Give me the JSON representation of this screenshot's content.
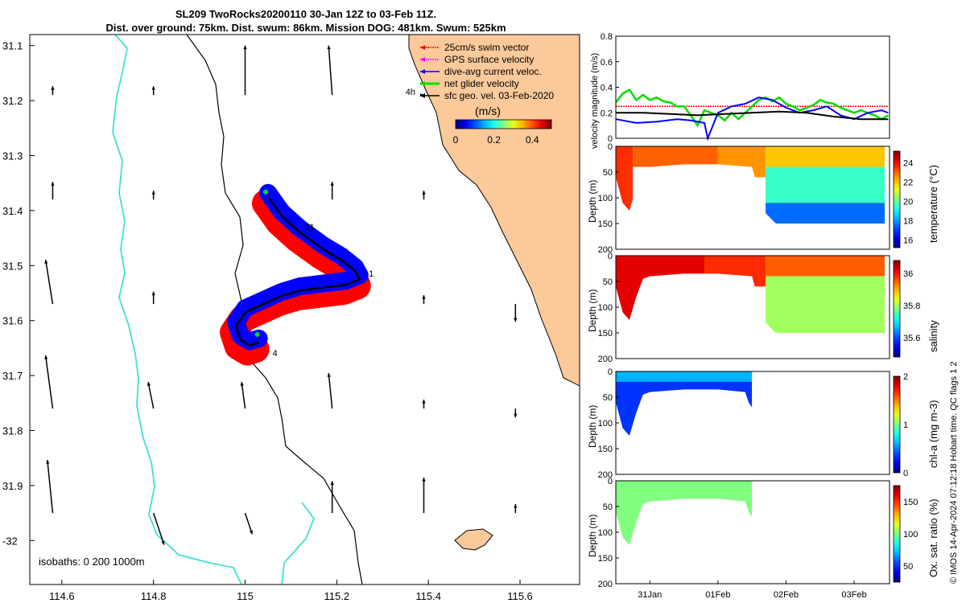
{
  "title_line1": "SL209 TwoRocks20200110 30-Jan 12Z to 03-Feb 11Z.",
  "title_line2": "Dist. over ground: 75km. Dist. swum: 86km. Mission DOG: 481km. Swum: 525km",
  "footer": "© IMOS 14-Apr-2024 07:12:18 Hobart time. QC flags 1  2",
  "colors": {
    "land": "#fbc99a",
    "coast": "#000000",
    "isobath": "#40e0d0",
    "swim": "#ff0000",
    "gps": "#ff00ff",
    "dac": "#0000ff",
    "net": "#00dd00",
    "sfc": "#000000"
  },
  "chart_data": [
    {
      "type": "map",
      "xlim": [
        114.53,
        115.73
      ],
      "ylim": [
        -32.08,
        -31.08
      ],
      "x_ticks": [
        "114.6",
        "114.8",
        "115",
        "115.2",
        "115.4",
        "115.6"
      ],
      "y_ticks": [
        "31.1",
        "31.2",
        "31.3",
        "31.4",
        "31.5",
        "31.6",
        "31.7",
        "31.8",
        "31.9",
        "-32"
      ],
      "isobath_label": "isobaths: 0   200  1000m",
      "legend": [
        "25cm/s swim vector",
        "GPS surface velocity",
        "dive-avg current veloc.",
        "net glider velocity",
        "sfc geo. vel. 03-Feb-2020"
      ],
      "colorbar_label": "(m/s)",
      "colorbar_ticks": [
        "0",
        "0.2",
        "0.4"
      ],
      "colorbar_range": [
        0,
        0.5
      ],
      "annotations": [
        {
          "text": "4h",
          "lon": 115.35,
          "lat": -31.19
        },
        {
          "text": "31",
          "lon": 115.13,
          "lat": -31.435
        },
        {
          "text": "1",
          "lon": 115.27,
          "lat": -31.52
        },
        {
          "text": "4",
          "lon": 115.06,
          "lat": -31.665
        }
      ],
      "track": [
        [
          115.05,
          -31.375
        ],
        [
          115.08,
          -31.41
        ],
        [
          115.12,
          -31.44
        ],
        [
          115.17,
          -31.47
        ],
        [
          115.21,
          -31.49
        ],
        [
          115.24,
          -31.51
        ],
        [
          115.25,
          -31.525
        ],
        [
          115.22,
          -31.535
        ],
        [
          115.17,
          -31.54
        ],
        [
          115.12,
          -31.545
        ],
        [
          115.08,
          -31.555
        ],
        [
          115.04,
          -31.57
        ],
        [
          115.0,
          -31.585
        ],
        [
          114.98,
          -31.61
        ],
        [
          114.99,
          -31.635
        ],
        [
          115.01,
          -31.645
        ],
        [
          115.03,
          -31.64
        ]
      ],
      "surface_vectors": [
        {
          "lon": 114.58,
          "lat": -31.19,
          "u": 0.0,
          "v": 0.05
        },
        {
          "lon": 114.8,
          "lat": -31.19,
          "u": 0.0,
          "v": 0.05
        },
        {
          "lon": 115.0,
          "lat": -31.19,
          "u": 0.0,
          "v": 0.28
        },
        {
          "lon": 115.19,
          "lat": -31.19,
          "u": -0.02,
          "v": 0.28
        },
        {
          "lon": 115.39,
          "lat": -31.19,
          "u": 0.0,
          "v": 0.0
        },
        {
          "lon": 114.58,
          "lat": -31.38,
          "u": 0.0,
          "v": 0.1
        },
        {
          "lon": 114.8,
          "lat": -31.38,
          "u": 0.0,
          "v": 0.05
        },
        {
          "lon": 115.19,
          "lat": -31.38,
          "u": 0.0,
          "v": 0.1
        },
        {
          "lon": 115.39,
          "lat": -31.38,
          "u": 0.0,
          "v": 0.05
        },
        {
          "lon": 114.58,
          "lat": -31.57,
          "u": -0.04,
          "v": 0.25
        },
        {
          "lon": 114.8,
          "lat": -31.57,
          "u": 0.0,
          "v": 0.07
        },
        {
          "lon": 115.19,
          "lat": -31.57,
          "u": 0.0,
          "v": 0.15
        },
        {
          "lon": 115.39,
          "lat": -31.57,
          "u": 0.0,
          "v": 0.05
        },
        {
          "lon": 115.59,
          "lat": -31.57,
          "u": 0.0,
          "v": -0.1
        },
        {
          "lon": 114.58,
          "lat": -31.76,
          "u": -0.04,
          "v": 0.3
        },
        {
          "lon": 114.8,
          "lat": -31.76,
          "u": -0.03,
          "v": 0.15
        },
        {
          "lon": 115.0,
          "lat": -31.76,
          "u": -0.02,
          "v": 0.15
        },
        {
          "lon": 115.19,
          "lat": -31.76,
          "u": -0.02,
          "v": 0.2
        },
        {
          "lon": 115.39,
          "lat": -31.76,
          "u": 0.0,
          "v": 0.05
        },
        {
          "lon": 115.59,
          "lat": -31.76,
          "u": 0.0,
          "v": -0.05
        },
        {
          "lon": 114.58,
          "lat": -31.95,
          "u": -0.03,
          "v": 0.3
        },
        {
          "lon": 114.8,
          "lat": -31.95,
          "u": 0.06,
          "v": -0.18
        },
        {
          "lon": 115.0,
          "lat": -31.95,
          "u": 0.04,
          "v": -0.12
        },
        {
          "lon": 115.19,
          "lat": -31.95,
          "u": 0.0,
          "v": 0.18
        },
        {
          "lon": 115.39,
          "lat": -31.95,
          "u": 0.0,
          "v": 0.2
        },
        {
          "lon": 115.59,
          "lat": -31.95,
          "u": 0.0,
          "v": 0.05
        }
      ]
    },
    {
      "type": "line",
      "ylabel": "velocity magnitude (m/s)",
      "xlim": [
        0,
        4.02
      ],
      "ylim": [
        0,
        0.8
      ],
      "y_ticks": [
        "0",
        "0.2",
        "0.4",
        "0.6",
        "0.8"
      ],
      "series": [
        {
          "color": "#ff0000",
          "x": [
            0.0,
            4.0
          ],
          "y": [
            0.25,
            0.25
          ]
        },
        {
          "color": "#00dd00",
          "x": [
            0.0,
            0.1,
            0.2,
            0.3,
            0.4,
            0.5,
            0.6,
            0.7,
            0.8,
            0.9,
            1.0,
            1.1,
            1.2,
            1.3,
            1.4,
            1.5,
            1.6,
            1.7,
            1.8,
            1.9,
            2.0,
            2.1,
            2.2,
            2.3,
            2.4,
            2.5,
            2.6,
            2.7,
            2.8,
            2.9,
            3.0,
            3.1,
            3.2,
            3.3,
            3.4,
            3.5,
            3.6,
            3.7,
            3.8,
            3.9,
            4.0
          ],
          "y": [
            0.28,
            0.35,
            0.38,
            0.3,
            0.34,
            0.3,
            0.32,
            0.29,
            0.28,
            0.25,
            0.25,
            0.18,
            0.1,
            0.22,
            0.2,
            0.18,
            0.14,
            0.2,
            0.15,
            0.2,
            0.25,
            0.3,
            0.32,
            0.29,
            0.32,
            0.27,
            0.25,
            0.22,
            0.24,
            0.26,
            0.3,
            0.28,
            0.27,
            0.24,
            0.22,
            0.2,
            0.22,
            0.2,
            0.18,
            0.15,
            0.18
          ]
        },
        {
          "color": "#0000ff",
          "x": [
            0.0,
            0.3,
            0.6,
            0.9,
            1.1,
            1.3,
            1.35,
            1.5,
            1.7,
            1.9,
            2.1,
            2.3,
            2.5,
            2.7,
            2.9,
            3.1,
            3.3,
            3.5,
            3.7,
            3.9,
            4.0
          ],
          "y": [
            0.15,
            0.12,
            0.13,
            0.15,
            0.14,
            0.12,
            0.0,
            0.2,
            0.25,
            0.27,
            0.32,
            0.3,
            0.24,
            0.2,
            0.22,
            0.25,
            0.18,
            0.15,
            0.2,
            0.22,
            0.2
          ]
        },
        {
          "color": "#000000",
          "x": [
            0.0,
            0.4,
            0.8,
            1.2,
            1.6,
            2.0,
            2.4,
            2.8,
            3.2,
            3.6,
            4.0
          ],
          "y": [
            0.2,
            0.2,
            0.19,
            0.18,
            0.19,
            0.2,
            0.21,
            0.2,
            0.17,
            0.15,
            0.15
          ]
        }
      ]
    },
    {
      "type": "heatmap",
      "variable": "temperature",
      "colorbar_label": "temperature (°C)",
      "colorbar_ticks": [
        "16",
        "18",
        "20",
        "22",
        "24"
      ],
      "colorbar_range": [
        15.2,
        25.2
      ],
      "ylabel": "Depth (m)",
      "ylim": [
        0,
        200
      ],
      "y_ticks": [
        "0",
        "50",
        "100",
        "150",
        "200"
      ],
      "xlim": [
        0,
        4.02
      ],
      "bottom_depth": {
        "x": [
          0.0,
          0.1,
          0.2,
          0.3,
          0.4,
          0.5,
          1.0,
          1.5,
          2.0,
          2.1,
          2.2,
          2.35,
          2.5,
          3.0,
          3.5,
          3.95
        ],
        "y": [
          60,
          110,
          125,
          80,
          45,
          40,
          35,
          35,
          40,
          90,
          130,
          150,
          150,
          150,
          150,
          150
        ]
      },
      "regions": [
        {
          "x0": 0.0,
          "x1": 0.25,
          "z0": 0,
          "z1": 130,
          "value": 23.5
        },
        {
          "x0": 0.25,
          "x1": 1.5,
          "z0": 0,
          "z1": 40,
          "value": 23.0
        },
        {
          "x0": 1.5,
          "x1": 2.2,
          "z0": 0,
          "z1": 60,
          "value": 22.5
        },
        {
          "x0": 2.2,
          "x1": 3.95,
          "z0": 0,
          "z1": 40,
          "value": 22.0
        },
        {
          "x0": 2.2,
          "x1": 3.95,
          "z0": 40,
          "z1": 110,
          "value": 19.5
        },
        {
          "x0": 2.2,
          "x1": 3.95,
          "z0": 110,
          "z1": 150,
          "value": 17.5
        }
      ]
    },
    {
      "type": "heatmap",
      "variable": "salinity",
      "colorbar_label": "salinity",
      "colorbar_ticks": [
        "35.6",
        "35.8",
        "36"
      ],
      "colorbar_range": [
        35.48,
        36.08
      ],
      "ylabel": "Depth (m)",
      "ylim": [
        0,
        200
      ],
      "y_ticks": [
        "0",
        "50",
        "100",
        "150",
        "200"
      ],
      "xlim": [
        0,
        4.02
      ],
      "bottom_depth": {
        "x": [
          0.0,
          0.1,
          0.2,
          0.3,
          0.4,
          0.5,
          1.0,
          1.5,
          2.0,
          2.1,
          2.2,
          2.35,
          2.5,
          3.0,
          3.5,
          3.95
        ],
        "y": [
          60,
          110,
          125,
          80,
          45,
          40,
          35,
          35,
          40,
          90,
          130,
          150,
          150,
          150,
          150,
          150
        ]
      },
      "regions": [
        {
          "x0": 0.0,
          "x1": 1.3,
          "z0": 0,
          "z1": 130,
          "value": 36.02
        },
        {
          "x0": 1.3,
          "x1": 2.2,
          "z0": 0,
          "z1": 60,
          "value": 35.98
        },
        {
          "x0": 2.2,
          "x1": 3.95,
          "z0": 0,
          "z1": 40,
          "value": 35.95
        },
        {
          "x0": 2.2,
          "x1": 3.95,
          "z0": 40,
          "z1": 150,
          "value": 35.8
        }
      ]
    },
    {
      "type": "heatmap",
      "variable": "chl-a",
      "colorbar_label": "chl-a (mg m-3)",
      "colorbar_ticks": [
        "0",
        "1",
        "2"
      ],
      "colorbar_range": [
        0,
        2
      ],
      "ylabel": "Depth (m)",
      "ylim": [
        0,
        200
      ],
      "y_ticks": [
        "0",
        "50",
        "100",
        "150",
        "200"
      ],
      "xlim": [
        0,
        4.02
      ],
      "bottom_depth": {
        "x": [
          0.0,
          0.1,
          0.2,
          0.3,
          0.4,
          0.5,
          1.0,
          1.5,
          1.9,
          1.95,
          2.0
        ],
        "y": [
          60,
          110,
          125,
          80,
          45,
          40,
          35,
          35,
          40,
          60,
          70
        ]
      },
      "regions": [
        {
          "x0": 0.0,
          "x1": 2.0,
          "z0": 0,
          "z1": 125,
          "value": 0.35
        },
        {
          "x0": 0.0,
          "x1": 2.0,
          "z0": 0,
          "z1": 20,
          "value": 0.6
        }
      ]
    },
    {
      "type": "heatmap",
      "variable": "oxygen",
      "colorbar_label": "Ox. sat. ratio (%)",
      "colorbar_ticks": [
        "50",
        "100",
        "150"
      ],
      "colorbar_range": [
        25,
        175
      ],
      "ylabel": "Depth (m)",
      "ylim": [
        0,
        200
      ],
      "y_ticks": [
        "0",
        "50",
        "100",
        "150",
        "200"
      ],
      "x_ticks": [
        "31Jan",
        "01Feb",
        "02Feb",
        "03Feb"
      ],
      "x_tick_positions": [
        0.5,
        1.5,
        2.5,
        3.5
      ],
      "xlim": [
        0,
        4.02
      ],
      "bottom_depth": {
        "x": [
          0.0,
          0.1,
          0.2,
          0.3,
          0.4,
          0.5,
          1.0,
          1.5,
          1.9,
          1.95,
          2.0
        ],
        "y": [
          60,
          110,
          125,
          80,
          45,
          40,
          35,
          35,
          40,
          60,
          70
        ]
      },
      "regions": [
        {
          "x0": 0.0,
          "x1": 2.0,
          "z0": 0,
          "z1": 125,
          "value": 100
        }
      ]
    }
  ]
}
